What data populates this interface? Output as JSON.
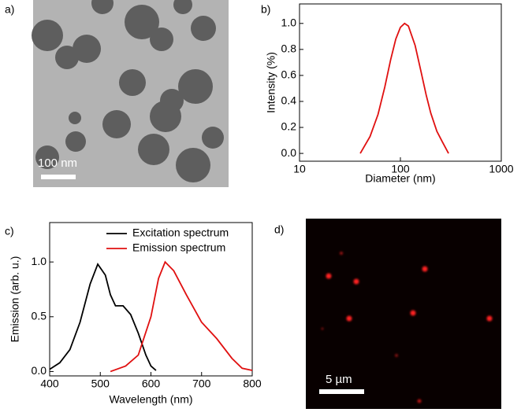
{
  "panel_labels": [
    "a)",
    "b)",
    "c)",
    "d)"
  ],
  "images": [
    {
      "scale_bar": "100 nm"
    },
    {
      "scale_bar": "5 µm"
    }
  ],
  "chart_data": [
    {
      "type": "line",
      "x_label": "Diameter (nm)",
      "y_label": "Intensity (%)",
      "xlog": true,
      "xlim": [
        10,
        1000
      ],
      "xticks": [
        10,
        100,
        1000
      ],
      "ylim": [
        -0.06,
        1.15
      ],
      "yticks": [
        {
          "value": 0,
          "label": "0.0"
        },
        {
          "value": 0.2,
          "label": "0.2"
        },
        {
          "value": 0.4,
          "label": "0.4"
        },
        {
          "value": 0.6,
          "label": "0.6"
        },
        {
          "value": 0.8,
          "label": "0.8"
        },
        {
          "value": 1,
          "label": "1.0"
        }
      ],
      "series": [
        {
          "color": "#e01010",
          "x": [
            40,
            50,
            60,
            70,
            80,
            90,
            100,
            110,
            120,
            140,
            160,
            180,
            200,
            230,
            260,
            300
          ],
          "values": [
            0,
            0.13,
            0.3,
            0.51,
            0.72,
            0.88,
            0.97,
            1.0,
            0.98,
            0.83,
            0.63,
            0.45,
            0.31,
            0.17,
            0.09,
            0
          ]
        }
      ]
    },
    {
      "type": "line",
      "x_label": "Wavelength (nm)",
      "y_label": "Emission (arb. u.)",
      "xlog": false,
      "xlim": [
        400,
        800
      ],
      "xticks": [
        400,
        500,
        600,
        700,
        800
      ],
      "ylim": [
        -0.04,
        1.36
      ],
      "yticks": [
        {
          "value": 0,
          "label": "0.0"
        },
        {
          "value": 0.5,
          "label": "0.5"
        },
        {
          "value": 1,
          "label": "1.0"
        }
      ],
      "legend": "upper right",
      "series": [
        {
          "name": "Excitation spectrum",
          "color": "#000000",
          "x": [
            400,
            420,
            440,
            460,
            480,
            495,
            510,
            520,
            530,
            545,
            560,
            575,
            590,
            600,
            610
          ],
          "values": [
            0.02,
            0.08,
            0.2,
            0.45,
            0.8,
            0.98,
            0.88,
            0.7,
            0.6,
            0.6,
            0.52,
            0.35,
            0.15,
            0.05,
            0.01
          ]
        },
        {
          "name": "Emission spectrum",
          "color": "#e01010",
          "x": [
            520,
            550,
            575,
            600,
            615,
            628,
            645,
            670,
            700,
            730,
            760,
            780,
            800
          ],
          "values": [
            0,
            0.05,
            0.15,
            0.5,
            0.85,
            1.0,
            0.92,
            0.7,
            0.45,
            0.3,
            0.12,
            0.03,
            0.01
          ]
        }
      ]
    }
  ]
}
